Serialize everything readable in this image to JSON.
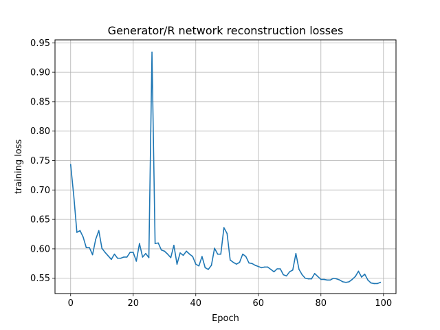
{
  "chart_data": {
    "type": "line",
    "title": "Generator/R network reconstruction losses",
    "xlabel": "Epoch",
    "ylabel": "training loss",
    "xlim": [
      -5,
      104
    ],
    "ylim": [
      0.524,
      0.955
    ],
    "grid": true,
    "legend": "none",
    "xticks": [
      0,
      20,
      40,
      60,
      80,
      100
    ],
    "yticks": [
      0.55,
      0.6,
      0.65,
      0.7,
      0.75,
      0.8,
      0.85,
      0.9,
      0.95
    ],
    "ytick_labels": [
      "0.55",
      "0.60",
      "0.65",
      "0.70",
      "0.75",
      "0.80",
      "0.85",
      "0.90",
      "0.95"
    ],
    "line_color": "#1f77b4",
    "series": [
      {
        "x": [
          0,
          1,
          2,
          3,
          4,
          5,
          6,
          7,
          8,
          9,
          10,
          11,
          12,
          13,
          14,
          15,
          16,
          17,
          18,
          19,
          20,
          21,
          22,
          23,
          24,
          25,
          26,
          27,
          28,
          29,
          30,
          31,
          32,
          33,
          34,
          35,
          36,
          37,
          38,
          39,
          40,
          41,
          42,
          43,
          44,
          45,
          46,
          47,
          48,
          49,
          50,
          51,
          52,
          53,
          54,
          55,
          56,
          57,
          58,
          59,
          60,
          61,
          62,
          63,
          64,
          65,
          66,
          67,
          68,
          69,
          70,
          71,
          72,
          73,
          74,
          75,
          76,
          77,
          78,
          79,
          80,
          81,
          82,
          83,
          84,
          85,
          86,
          87,
          88,
          89,
          90,
          91,
          92,
          93,
          94,
          95,
          96,
          97,
          98,
          99
        ],
        "values": [
          0.743,
          0.69,
          0.628,
          0.631,
          0.62,
          0.602,
          0.602,
          0.59,
          0.616,
          0.631,
          0.601,
          0.594,
          0.588,
          0.582,
          0.591,
          0.584,
          0.584,
          0.586,
          0.586,
          0.594,
          0.594,
          0.579,
          0.609,
          0.586,
          0.592,
          0.585,
          0.934,
          0.609,
          0.61,
          0.598,
          0.596,
          0.591,
          0.585,
          0.606,
          0.574,
          0.593,
          0.589,
          0.596,
          0.591,
          0.587,
          0.574,
          0.571,
          0.587,
          0.568,
          0.565,
          0.572,
          0.601,
          0.591,
          0.591,
          0.636,
          0.626,
          0.581,
          0.577,
          0.574,
          0.577,
          0.591,
          0.587,
          0.576,
          0.575,
          0.572,
          0.57,
          0.568,
          0.569,
          0.569,
          0.565,
          0.561,
          0.566,
          0.566,
          0.556,
          0.554,
          0.561,
          0.564,
          0.592,
          0.565,
          0.556,
          0.55,
          0.549,
          0.549,
          0.558,
          0.553,
          0.548,
          0.548,
          0.547,
          0.547,
          0.55,
          0.549,
          0.547,
          0.544,
          0.543,
          0.544,
          0.548,
          0.553,
          0.562,
          0.552,
          0.557,
          0.547,
          0.542,
          0.541,
          0.541,
          0.543
        ]
      }
    ]
  }
}
